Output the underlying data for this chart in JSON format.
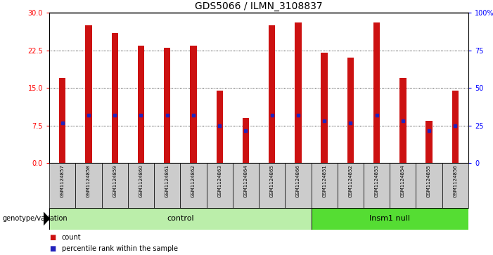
{
  "title": "GDS5066 / ILMN_3108837",
  "samples": [
    "GSM1124857",
    "GSM1124858",
    "GSM1124859",
    "GSM1124860",
    "GSM1124861",
    "GSM1124862",
    "GSM1124863",
    "GSM1124864",
    "GSM1124865",
    "GSM1124866",
    "GSM1124851",
    "GSM1124852",
    "GSM1124853",
    "GSM1124854",
    "GSM1124855",
    "GSM1124856"
  ],
  "bar_heights": [
    17.0,
    27.5,
    26.0,
    23.5,
    23.0,
    23.5,
    14.5,
    9.0,
    27.5,
    28.0,
    22.0,
    21.0,
    28.0,
    17.0,
    8.5,
    14.5
  ],
  "percentile_values": [
    8.0,
    9.5,
    9.5,
    9.5,
    9.5,
    9.5,
    7.5,
    6.5,
    9.5,
    9.5,
    8.5,
    8.0,
    9.5,
    8.5,
    6.5,
    7.5
  ],
  "n_control": 10,
  "n_insm1": 6,
  "ylim_left": [
    0,
    30
  ],
  "ylim_right": [
    0,
    100
  ],
  "yticks_left": [
    0,
    7.5,
    15,
    22.5,
    30
  ],
  "yticks_right": [
    0,
    25,
    50,
    75,
    100
  ],
  "bar_color": "#CC1111",
  "marker_color": "#2222BB",
  "control_bg": "#BBEEAA",
  "insm1_bg": "#55DD33",
  "sample_bg": "#CCCCCC",
  "control_label": "control",
  "insm1_label": "Insm1 null",
  "genotype_label": "genotype/variation",
  "legend_count": "count",
  "legend_percentile": "percentile rank within the sample",
  "title_fontsize": 10,
  "tick_fontsize": 7,
  "bar_width": 0.25
}
